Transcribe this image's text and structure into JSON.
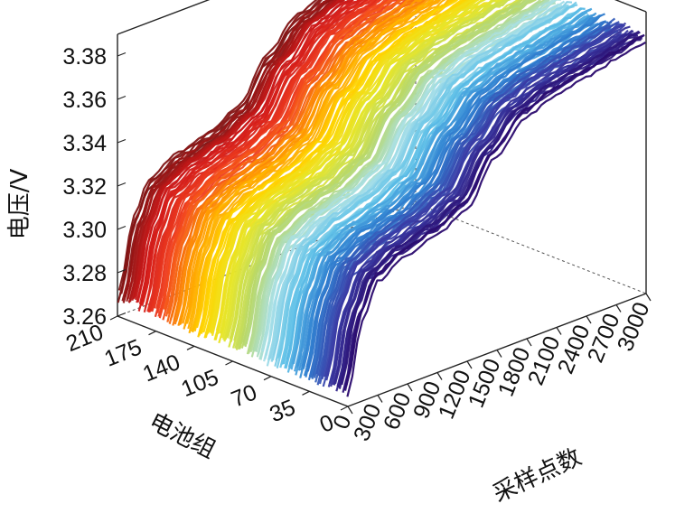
{
  "chart_data": {
    "type": "surface-lines-3d",
    "xlabel": "采样点数",
    "ylabel": "电池组",
    "zlabel": "电压/V",
    "xlim": [
      0,
      3000
    ],
    "ylim": [
      0,
      210
    ],
    "zlim": [
      3.26,
      3.39
    ],
    "x_ticks": [
      "0",
      "300",
      "600",
      "900",
      "1200",
      "1500",
      "1800",
      "2100",
      "2400",
      "2700",
      "3000"
    ],
    "y_ticks": [
      "0",
      "35",
      "70",
      "105",
      "140",
      "175",
      "210"
    ],
    "z_ticks": [
      "3.26",
      "3.28",
      "3.30",
      "3.32",
      "3.34",
      "3.36",
      "3.38"
    ],
    "series_count": 210,
    "colormap": [
      "#2a0a6e",
      "#3b3fa8",
      "#2f7fd0",
      "#5ec0e8",
      "#a8dfe8",
      "#b8d86a",
      "#e6e62a",
      "#ffd400",
      "#ff9a00",
      "#f04020",
      "#d01818",
      "#7a1414"
    ],
    "profile": {
      "x": [
        0,
        150,
        300,
        600,
        900,
        1200,
        1500,
        1800,
        2100,
        2400,
        2700,
        3000
      ],
      "v": [
        3.268,
        3.3,
        3.315,
        3.322,
        3.326,
        3.333,
        3.352,
        3.365,
        3.37,
        3.373,
        3.376,
        3.379
      ]
    },
    "grid": false
  }
}
